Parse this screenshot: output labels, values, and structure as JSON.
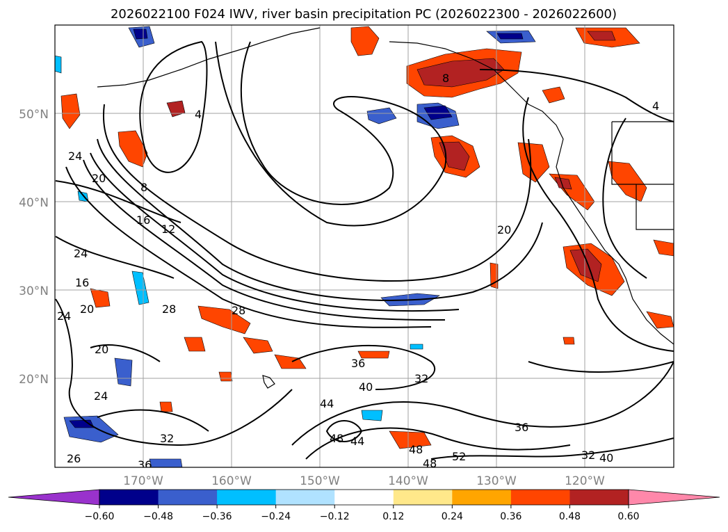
{
  "title": "2026022100 F024 IWV, river basin precipitation PC (2026022300 - 2026022600)",
  "lat_labels": [
    "50°N",
    "40°N",
    "30°N",
    "20°N"
  ],
  "lon_labels": [
    "170°W",
    "160°W",
    "150°W",
    "140°W",
    "130°W",
    "120°W"
  ],
  "colorbar": {
    "extend_low_color": "#9932cc",
    "extend_high_color": "#ff88aa",
    "colors": [
      "#00008b",
      "#3a5fcd",
      "#00bfff",
      "#b0e2ff",
      "#ffffff",
      "#ffe88a",
      "#ffa500",
      "#ff4500",
      "#b22222"
    ],
    "tick_labels": [
      "−0.60",
      "−0.48",
      "−0.36",
      "−0.24",
      "−0.12",
      "0.12",
      "0.24",
      "0.36",
      "0.48",
      "0.60"
    ]
  },
  "contour_labels": [
    "4",
    "4",
    "8",
    "8",
    "12",
    "16",
    "20",
    "20",
    "20",
    "20",
    "24",
    "24",
    "24",
    "24",
    "16",
    "28",
    "28",
    "36",
    "36",
    "32",
    "32",
    "40",
    "44",
    "44",
    "48",
    "48",
    "48",
    "52",
    "36",
    "26",
    "32",
    "40"
  ]
}
